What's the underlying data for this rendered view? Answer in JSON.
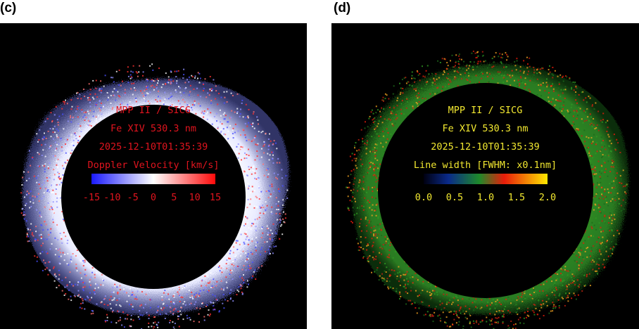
{
  "panels": [
    {
      "label": "(c)",
      "title": "MPP II / SICG",
      "line": "Fe XIV 530.3 nm",
      "timestamp": "2025-12-10T01:35:39",
      "quantity": "Doppler Velocity [km/s]",
      "tick_labels": [
        "-15",
        "-10",
        "-5",
        "0",
        "5",
        "10",
        "15"
      ],
      "tick_values": [
        -15,
        -10,
        -5,
        0,
        5,
        10,
        15
      ],
      "range": [
        -15,
        15
      ],
      "text_color": "#e0141e",
      "colormap": "blue-white-red",
      "colors": {
        "low": "#1a1aff",
        "mid": "#ffffff",
        "high": "#ff0a0a"
      }
    },
    {
      "label": "(d)",
      "title": "MPP II / SICG",
      "line": "Fe XIV 530.3 nm",
      "timestamp": "2025-12-10T01:35:39",
      "quantity": "Line width [FWHM: x0.1nm]",
      "tick_labels": [
        "0.0",
        "0.5",
        "1.0",
        "1.5",
        "2.0"
      ],
      "tick_values": [
        0.0,
        0.5,
        1.0,
        1.5,
        2.0
      ],
      "range": [
        0.0,
        2.0
      ],
      "text_color": "#f2e830",
      "colormap": "black-blue-green-red-yellow",
      "colors": {
        "c0": "#000010",
        "c1": "#0a2a8a",
        "c2": "#1e8a2a",
        "c3": "#e81c0a",
        "c4": "#ffe800"
      }
    }
  ]
}
